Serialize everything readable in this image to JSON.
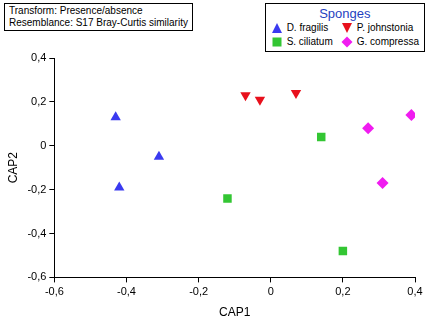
{
  "chart_data": {
    "type": "scatter",
    "annotations": [
      "Transform: Presence/absence",
      "Resemblance: S17 Bray-Curtis similarity"
    ],
    "x_label": "CAP1",
    "y_label": "CAP2",
    "legend_title": "Sponges",
    "legend": "upper right",
    "grid": false,
    "xlim": [
      -0.6,
      0.4
    ],
    "xticks": [
      {
        "value": -0.6,
        "label": "-0,6"
      },
      {
        "value": -0.4,
        "label": "-0,4"
      },
      {
        "value": -0.2,
        "label": "-0,2"
      },
      0,
      {
        "value": 0.2,
        "label": "0,2"
      },
      {
        "value": 0.4,
        "label": "0,4"
      }
    ],
    "ylim": [
      -0.6,
      0.4
    ],
    "yticks": [
      {
        "value": -0.6,
        "label": "-0,6"
      },
      {
        "value": -0.4,
        "label": "-0,4"
      },
      {
        "value": -0.2,
        "label": "-0,2"
      },
      0,
      {
        "value": 0.2,
        "label": "0,2"
      },
      {
        "value": 0.4,
        "label": "0,4"
      }
    ],
    "series": [
      {
        "name": "D. fragilis",
        "color": "#3a3af0",
        "marker": "triangle",
        "x": [
          -0.43,
          -0.31,
          -0.42
        ],
        "values": [
          0.13,
          -0.05,
          -0.19
        ]
      },
      {
        "name": "P. johnstonia",
        "color": "#e8101c",
        "marker": "triangle_down",
        "x": [
          -0.07,
          -0.03,
          0.07
        ],
        "values": [
          0.23,
          0.21,
          0.24
        ]
      },
      {
        "name": "S. ciliatum",
        "color": "#33c633",
        "marker": "square",
        "x": [
          0.14,
          -0.12,
          0.2
        ],
        "values": [
          0.04,
          -0.24,
          -0.48
        ]
      },
      {
        "name": "G. compressa",
        "color": "#f01cf0",
        "marker": "diamond",
        "x": [
          0.27,
          0.39,
          0.31
        ],
        "values": [
          0.08,
          0.14,
          -0.17
        ]
      }
    ]
  }
}
